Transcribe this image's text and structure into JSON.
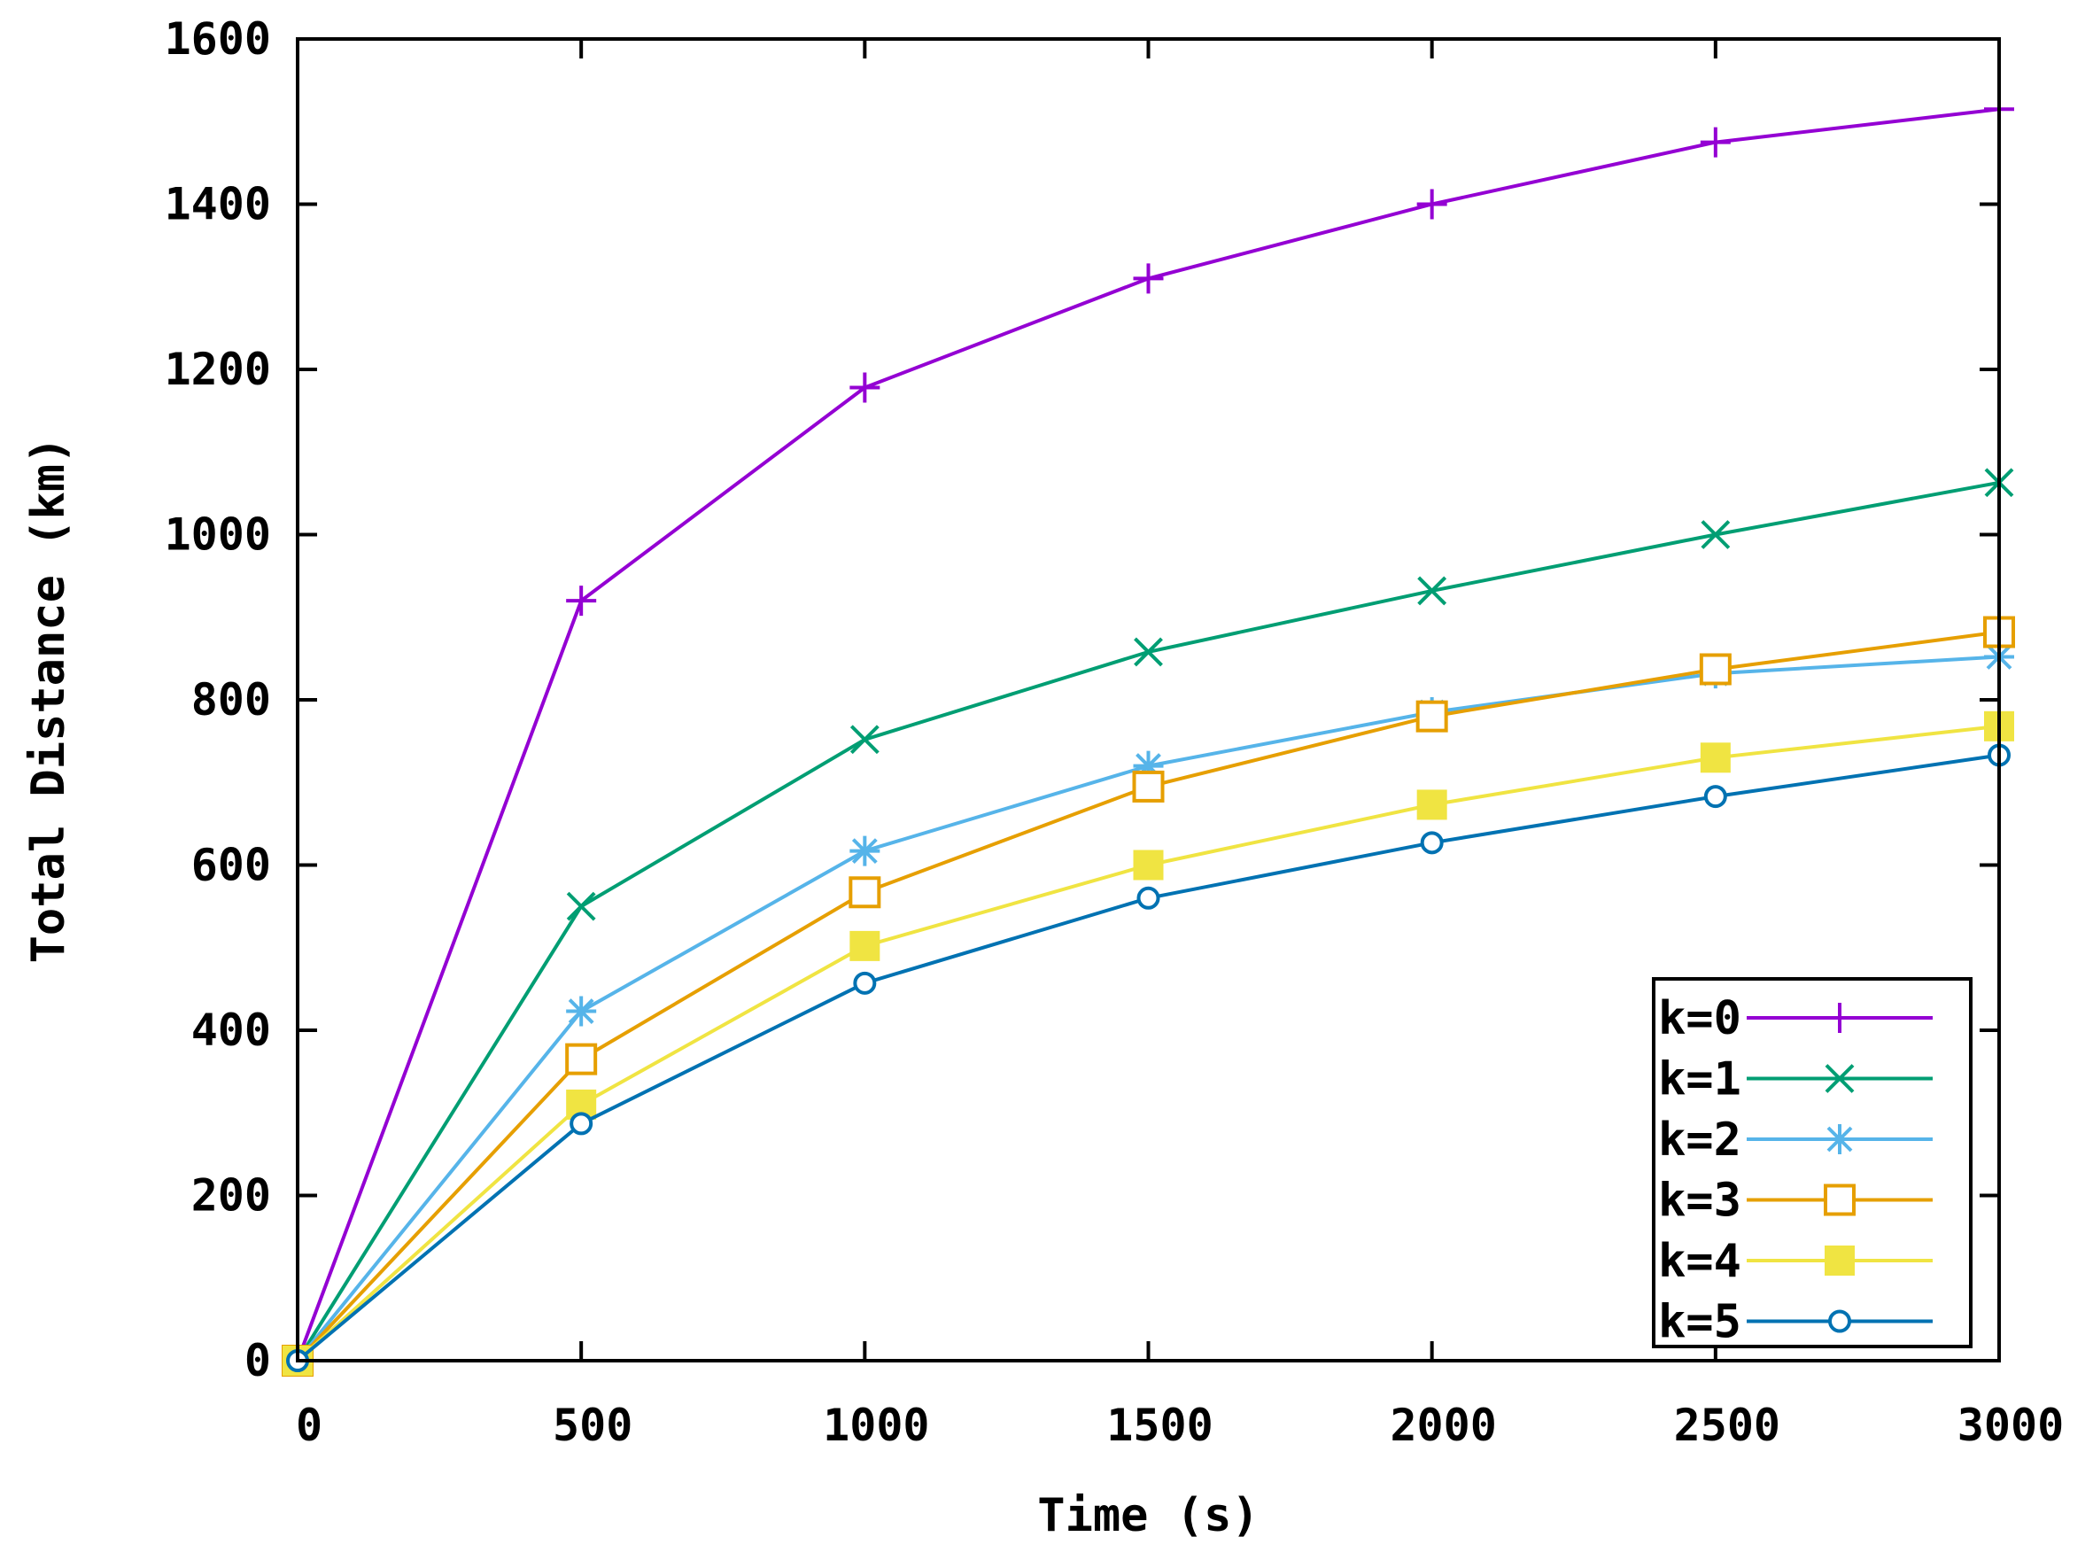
{
  "chart_data": {
    "type": "line",
    "title": "",
    "xlabel": "Time (s)",
    "ylabel": "Total Distance (km)",
    "xlim": [
      0,
      3000
    ],
    "ylim": [
      0,
      1600
    ],
    "xticks": [
      0,
      500,
      1000,
      1500,
      2000,
      2500,
      3000
    ],
    "yticks": [
      0,
      200,
      400,
      600,
      800,
      1000,
      1200,
      1400,
      1600
    ],
    "xtick_labels": [
      "0",
      "500",
      "1000",
      "1500",
      "2000",
      "2500",
      "3000"
    ],
    "ytick_labels": [
      "0",
      "200",
      "400",
      "600",
      "800",
      "1000",
      "1200",
      "1400",
      "1600"
    ],
    "grid": false,
    "legend_position": "bottom-right",
    "x": [
      0,
      500,
      1000,
      1500,
      2000,
      2500,
      3000
    ],
    "series": [
      {
        "name": "k=0",
        "color": "#9400d3",
        "marker": "plus",
        "values": [
          0,
          920,
          1178,
          1310,
          1400,
          1475,
          1515
        ]
      },
      {
        "name": "k=1",
        "color": "#009e73",
        "marker": "cross",
        "values": [
          0,
          550,
          752,
          858,
          932,
          1000,
          1063
        ]
      },
      {
        "name": "k=2",
        "color": "#56b4e9",
        "marker": "star",
        "values": [
          0,
          423,
          617,
          720,
          785,
          832,
          852
        ]
      },
      {
        "name": "k=3",
        "color": "#e69f00",
        "marker": "open-square",
        "values": [
          0,
          365,
          567,
          695,
          780,
          837,
          882
        ]
      },
      {
        "name": "k=4",
        "color": "#f0e442",
        "marker": "filled-square",
        "values": [
          0,
          310,
          502,
          600,
          673,
          730,
          768
        ]
      },
      {
        "name": "k=5",
        "color": "#0072b2",
        "marker": "open-circle",
        "values": [
          0,
          287,
          457,
          560,
          627,
          683,
          733
        ]
      }
    ]
  }
}
